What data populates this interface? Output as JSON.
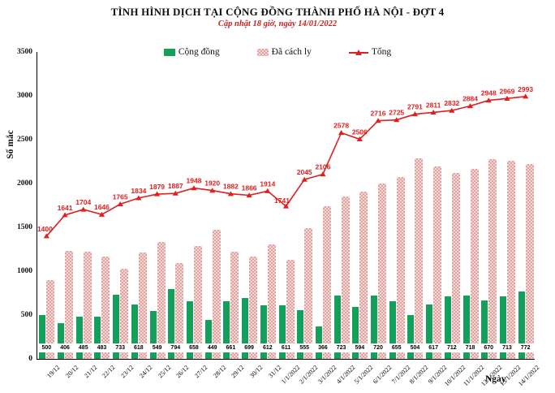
{
  "chart_data": {
    "type": "bar",
    "title": "TÌNH HÌNH DỊCH TẠI CỘNG ĐỒNG THÀNH PHỐ HÀ NỘI - ĐỢT 4",
    "subtitle": "Cập nhật 18 giờ, ngày 14/01/2022",
    "xlabel": "Ngày",
    "ylabel": "Số mắc",
    "ylim": [
      0,
      3500
    ],
    "y_ticks": [
      0,
      500,
      1000,
      1500,
      2000,
      2500,
      3000,
      3500
    ],
    "grid": false,
    "legend_position": "top",
    "categories": [
      "19/12",
      "20/12",
      "21/12",
      "22/12",
      "23/12",
      "24/12",
      "25/12",
      "26/12",
      "27/12",
      "28/12",
      "29/12",
      "30/12",
      "31/12",
      "1/1/2022",
      "2/1/2022",
      "3/1/2022",
      "4/1/2022",
      "5/1/2022",
      "6/1/2022",
      "7/1/2022",
      "8/1/2022",
      "9/1/2022",
      "10/1/2022",
      "11/1/2022",
      "12/1/2022",
      "13/1/2022",
      "14/1/2022"
    ],
    "series": [
      {
        "name": "Cộng đồng",
        "type": "bar",
        "color": "#14a05a",
        "data_labels": true,
        "values": [
          500,
          406,
          485,
          483,
          733,
          618,
          549,
          794,
          658,
          449,
          661,
          699,
          612,
          611,
          555,
          366,
          723,
          594,
          720,
          655,
          504,
          617,
          712,
          718,
          670,
          713,
          772
        ]
      },
      {
        "name": "Đã cách ly",
        "type": "bar",
        "color": "#f3d8d6",
        "data_labels": false,
        "values": [
          900,
          1235,
          1219,
          1163,
          1032,
          1216,
          1330,
          1093,
          1290,
          1471,
          1221,
          1167,
          1302,
          1130,
          1490,
          1740,
          1855,
          1912,
          1996,
          2070,
          2287,
          2194,
          2120,
          2166,
          2278,
          2256,
          2221
        ]
      },
      {
        "name": "Tổng",
        "type": "line",
        "color": "#e01f1f",
        "data_labels": true,
        "values": [
          1400,
          1641,
          1704,
          1646,
          1765,
          1834,
          1879,
          1887,
          1948,
          1920,
          1882,
          1866,
          1914,
          1741,
          2045,
          2106,
          2578,
          2506,
          2716,
          2725,
          2791,
          2811,
          2832,
          2884,
          2948,
          2969,
          2993
        ]
      }
    ]
  }
}
